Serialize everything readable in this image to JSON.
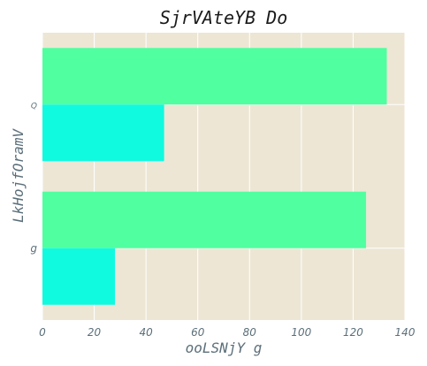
{
  "chart_data": {
    "type": "bar",
    "orientation": "horizontal",
    "title": "SjrVAteYB Do",
    "xlabel": "ooLSNjY g",
    "ylabel": "LkHojfOramV",
    "categories": [
      "g",
      "Q"
    ],
    "series": [
      {
        "values": [
          125,
          133
        ],
        "color": "#50ffa0"
      },
      {
        "values": [
          28,
          47
        ],
        "color": "#10fae0"
      }
    ],
    "xlim": [
      0,
      140
    ],
    "xticks": [
      0,
      20,
      40,
      60,
      80,
      100,
      120,
      140
    ],
    "grid": true,
    "background_color": "#ede6d5",
    "grid_color": "#ffffff"
  }
}
